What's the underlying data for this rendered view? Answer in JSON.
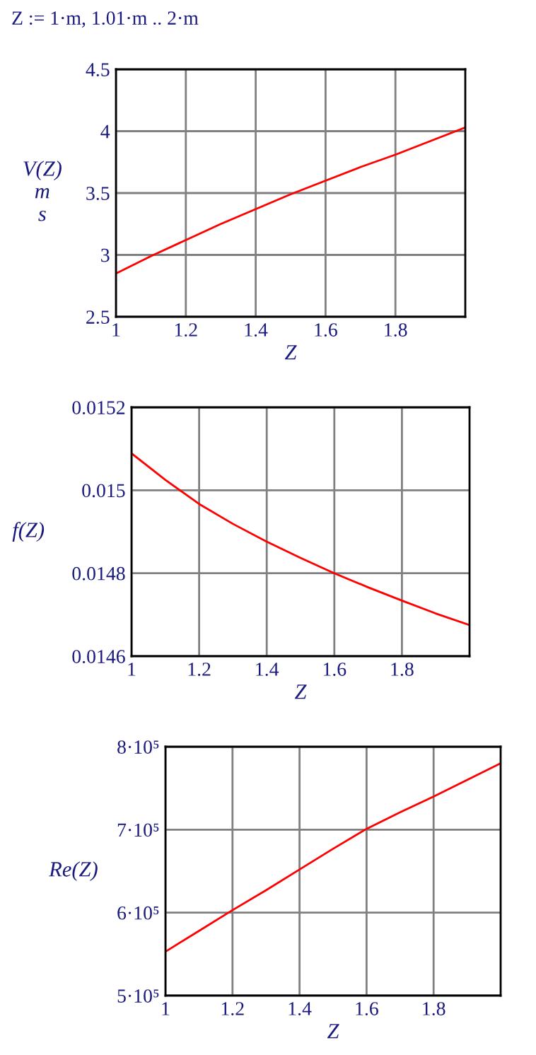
{
  "chart_data": [
    {
      "type": "line",
      "annotations": [
        "Z := 1·m, 1.01·m .. 2·m"
      ],
      "xlabel": "Z",
      "ylabel": "V(Z)\nm\ns",
      "x": [
        1,
        1.1,
        1.2,
        1.3,
        1.4,
        1.5,
        1.6,
        1.7,
        1.8,
        1.9,
        2.0
      ],
      "series": [
        {
          "color": "#ff0000",
          "values": [
            2.85,
            2.99,
            3.12,
            3.25,
            3.37,
            3.49,
            3.6,
            3.71,
            3.81,
            3.92,
            4.03
          ]
        }
      ],
      "xlim": [
        1,
        2
      ],
      "xticks": [
        1,
        1.2,
        1.4,
        1.6,
        1.8
      ],
      "ylim": [
        2.5,
        4.5
      ],
      "yticks": [
        2.5,
        3,
        3.5,
        4,
        4.5
      ],
      "grid": true
    },
    {
      "type": "line",
      "xlabel": "Z",
      "ylabel": "f(Z)",
      "x": [
        1,
        1.1,
        1.2,
        1.3,
        1.4,
        1.5,
        1.6,
        1.7,
        1.8,
        1.9,
        2.0
      ],
      "series": [
        {
          "color": "#ff0000",
          "values": [
            0.015089,
            0.015025,
            0.014967,
            0.014919,
            0.014876,
            0.014837,
            0.0148,
            0.014766,
            0.014734,
            0.014703,
            0.014675
          ]
        }
      ],
      "xlim": [
        1,
        2
      ],
      "xticks": [
        1,
        1.2,
        1.4,
        1.6,
        1.8
      ],
      "ylim": [
        0.0146,
        0.0152
      ],
      "yticks": [
        0.0146,
        0.0148,
        0.015,
        0.0152
      ],
      "grid": true
    },
    {
      "type": "line",
      "xlabel": "Z",
      "ylabel": "Re(Z)",
      "x": [
        1,
        1.1,
        1.2,
        1.3,
        1.4,
        1.5,
        1.6,
        1.7,
        1.8,
        1.9,
        2.0
      ],
      "series": [
        {
          "color": "#ff0000",
          "values": [
            553000,
            578000,
            603000,
            627000,
            652000,
            677000,
            701000,
            721000,
            740000,
            760000,
            780000
          ]
        }
      ],
      "xlim": [
        1,
        2
      ],
      "xticks": [
        1,
        1.2,
        1.4,
        1.6,
        1.8
      ],
      "ylim": [
        500000,
        800000
      ],
      "yticks": [
        {
          "value": 500000,
          "label": "5·10⁵"
        },
        {
          "value": 600000,
          "label": "6·10⁵"
        },
        {
          "value": 700000,
          "label": "7·10⁵"
        },
        {
          "value": 800000,
          "label": "8·10⁵"
        }
      ],
      "grid": true
    }
  ]
}
